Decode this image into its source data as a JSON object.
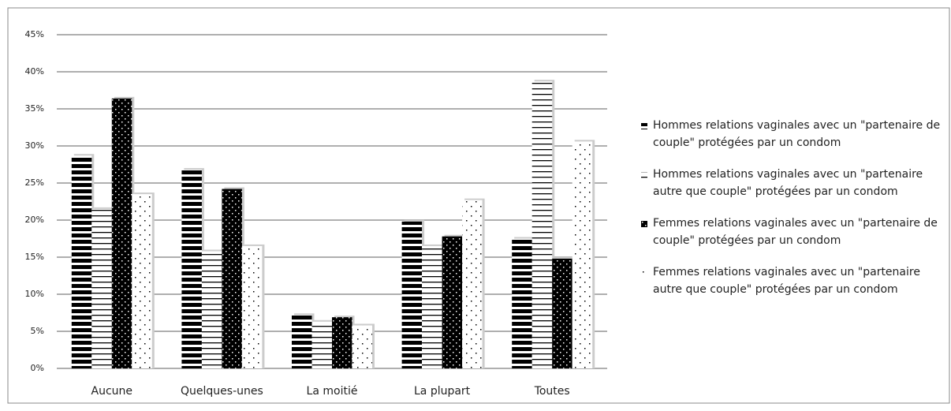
{
  "chart_data": {
    "type": "bar",
    "categories": [
      "Aucune",
      "Quelques-unes",
      "La moitié",
      "La plupart",
      "Toutes"
    ],
    "series": [
      {
        "name": "Hommes relations vaginales avec un \"partenaire de couple\" protégées par un condom",
        "color": "#000000",
        "pattern": "thick-stripes",
        "values": [
          28.7,
          26.8,
          7.2,
          19.8,
          17.5
        ]
      },
      {
        "name": "Hommes relations vaginales avec un \"partenaire autre que couple\" protégées par un condom",
        "color": "#000000",
        "pattern": "thin-stripes",
        "values": [
          21.5,
          15.8,
          6.3,
          16.5,
          38.7
        ]
      },
      {
        "name": "Femmes relations vaginales avec un \"partenaire de couple\" protégées par un condom",
        "color": "#000000",
        "pattern": "dense-dots",
        "values": [
          36.4,
          24.2,
          6.9,
          17.8,
          14.8
        ]
      },
      {
        "name": "Femmes relations vaginales avec un \"partenaire autre que couple\" protégées par un condom",
        "color": "#000000",
        "pattern": "sparse-dots",
        "values": [
          23.5,
          16.5,
          5.8,
          22.7,
          30.6
        ]
      }
    ],
    "ylim": [
      0,
      45
    ],
    "yticks": [
      {
        "value": 0,
        "label": "0%"
      },
      {
        "value": 5,
        "label": "5%"
      },
      {
        "value": 10,
        "label": "10%"
      },
      {
        "value": 15,
        "label": "15%"
      },
      {
        "value": 20,
        "label": "20%"
      },
      {
        "value": 25,
        "label": "25%"
      },
      {
        "value": 30,
        "label": "30%"
      },
      {
        "value": 35,
        "label": "35%"
      },
      {
        "value": 40,
        "label": "40%"
      },
      {
        "value": 45,
        "label": "45%"
      }
    ],
    "grid": true,
    "legend": "right"
  }
}
